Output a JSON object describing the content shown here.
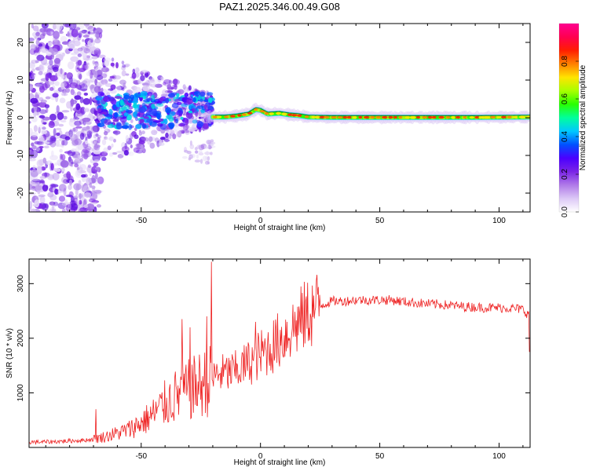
{
  "title": "PAZ1.2025.346.00.49.G08",
  "chart_data": [
    {
      "type": "heatmap",
      "name": "spectrogram",
      "xlabel": "Height of straight line (km)",
      "ylabel": "Frequency (Hz)",
      "xlim": [
        -97,
        113
      ],
      "ylim": [
        -25,
        25
      ],
      "xticks": [
        -50,
        0,
        50,
        100
      ],
      "yticks": [
        -20,
        -10,
        0,
        10,
        20
      ],
      "xtick_labels": [
        "-50",
        "0",
        "50",
        "100"
      ],
      "ytick_labels": [
        "-20",
        "-10",
        "0",
        "10",
        "20"
      ],
      "colorbar": {
        "label": "Normalized spectral amplitude",
        "range": [
          0,
          1
        ],
        "ticks": [
          0.0,
          0.2,
          0.4,
          0.6,
          0.8
        ],
        "tick_labels": [
          "0.0",
          "0.2",
          "0.4",
          "0.6",
          "0.8"
        ],
        "colormap": [
          "#ffffff",
          "#dcc8f6",
          "#b07ae8",
          "#7a24e6",
          "#4b00ff",
          "#0050ff",
          "#00c8ff",
          "#00ff9c",
          "#28ff00",
          "#a8ff00",
          "#ffe400",
          "#ff8000",
          "#ff1e00",
          "#ff0050",
          "#ff0090"
        ]
      },
      "centerline": {
        "x": [
          -19,
          -15,
          -10,
          -5,
          -2,
          0,
          3,
          8,
          12,
          16,
          20,
          30,
          50,
          70,
          90,
          113
        ],
        "freq": [
          0.2,
          0.2,
          0.5,
          1.0,
          2.2,
          2.0,
          1.0,
          1.2,
          0.8,
          0.6,
          0.2,
          0.1,
          0.1,
          0.1,
          0.1,
          0.2
        ]
      }
    },
    {
      "type": "line",
      "name": "snr",
      "xlabel": "Height of straight line (km)",
      "ylabel": "SNR (10 * v/v)",
      "xlim": [
        -97,
        113
      ],
      "ylim": [
        0,
        3450
      ],
      "xticks": [
        -50,
        0,
        50,
        100
      ],
      "yticks": [
        1000,
        2000,
        3000
      ],
      "xtick_labels": [
        "-50",
        "0",
        "50",
        "100"
      ],
      "ytick_labels": [
        "1000",
        "2000",
        "3000"
      ],
      "series": [
        {
          "name": "SNR",
          "color": "#ee2222",
          "x": [
            -97,
            -90,
            -80,
            -75,
            -70,
            -65,
            -60,
            -55,
            -50,
            -45,
            -40,
            -35,
            -30,
            -25,
            -20,
            -18,
            -15,
            -10,
            -5,
            0,
            5,
            10,
            15,
            20,
            25,
            30,
            35,
            40,
            45,
            50,
            55,
            60,
            65,
            70,
            75,
            80,
            85,
            90,
            95,
            100,
            105,
            110,
            113
          ],
          "y": [
            100,
            100,
            120,
            130,
            150,
            200,
            260,
            330,
            450,
            600,
            800,
            950,
            1050,
            1150,
            1250,
            1350,
            1350,
            1400,
            1550,
            1700,
            1850,
            2050,
            2250,
            2450,
            2600,
            2680,
            2680,
            2700,
            2700,
            2700,
            2700,
            2670,
            2650,
            2630,
            2620,
            2600,
            2580,
            2570,
            2560,
            2560,
            2550,
            2530,
            2400
          ]
        }
      ],
      "spikes": [
        {
          "x": -20.5,
          "y": 3400
        },
        {
          "x": -33,
          "y": 2350
        },
        {
          "x": -29.5,
          "y": 2200
        },
        {
          "x": -22.5,
          "y": 2400
        },
        {
          "x": -2,
          "y": 2300
        },
        {
          "x": 113,
          "y": 1750
        },
        {
          "x": -69,
          "y": 700
        }
      ]
    }
  ]
}
